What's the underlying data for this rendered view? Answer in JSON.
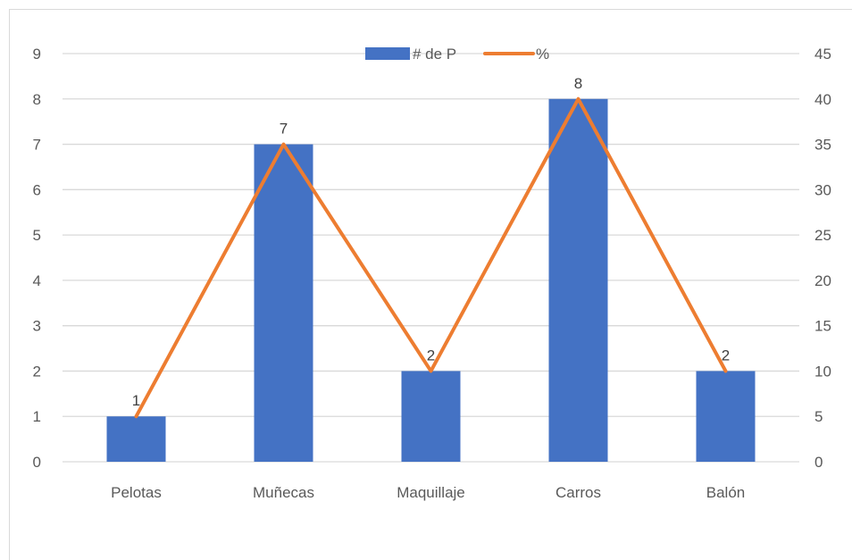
{
  "chart_data": {
    "type": "bar",
    "categories": [
      "Pelotas",
      "Muñecas",
      "Maquillaje",
      "Carros",
      "Balón"
    ],
    "series": [
      {
        "name": "# de P",
        "type": "bar",
        "axis": "left",
        "values": [
          1,
          7,
          2,
          8,
          2
        ],
        "data_labels": [
          "1",
          "7",
          "2",
          "8",
          "2"
        ],
        "color": "#4472C4"
      },
      {
        "name": "%",
        "type": "line",
        "axis": "right",
        "values": [
          5,
          35,
          10,
          40,
          10
        ],
        "color": "#ED7D31"
      }
    ],
    "y_left": {
      "range": [
        0,
        9
      ],
      "ticks": [
        "0",
        "1",
        "2",
        "3",
        "4",
        "5",
        "6",
        "7",
        "8",
        "9"
      ]
    },
    "y_right": {
      "range": [
        0,
        45
      ],
      "ticks": [
        "0",
        "5",
        "10",
        "15",
        "20",
        "25",
        "30",
        "35",
        "40",
        "45"
      ]
    },
    "grid": true,
    "legend_position": "top-center"
  }
}
